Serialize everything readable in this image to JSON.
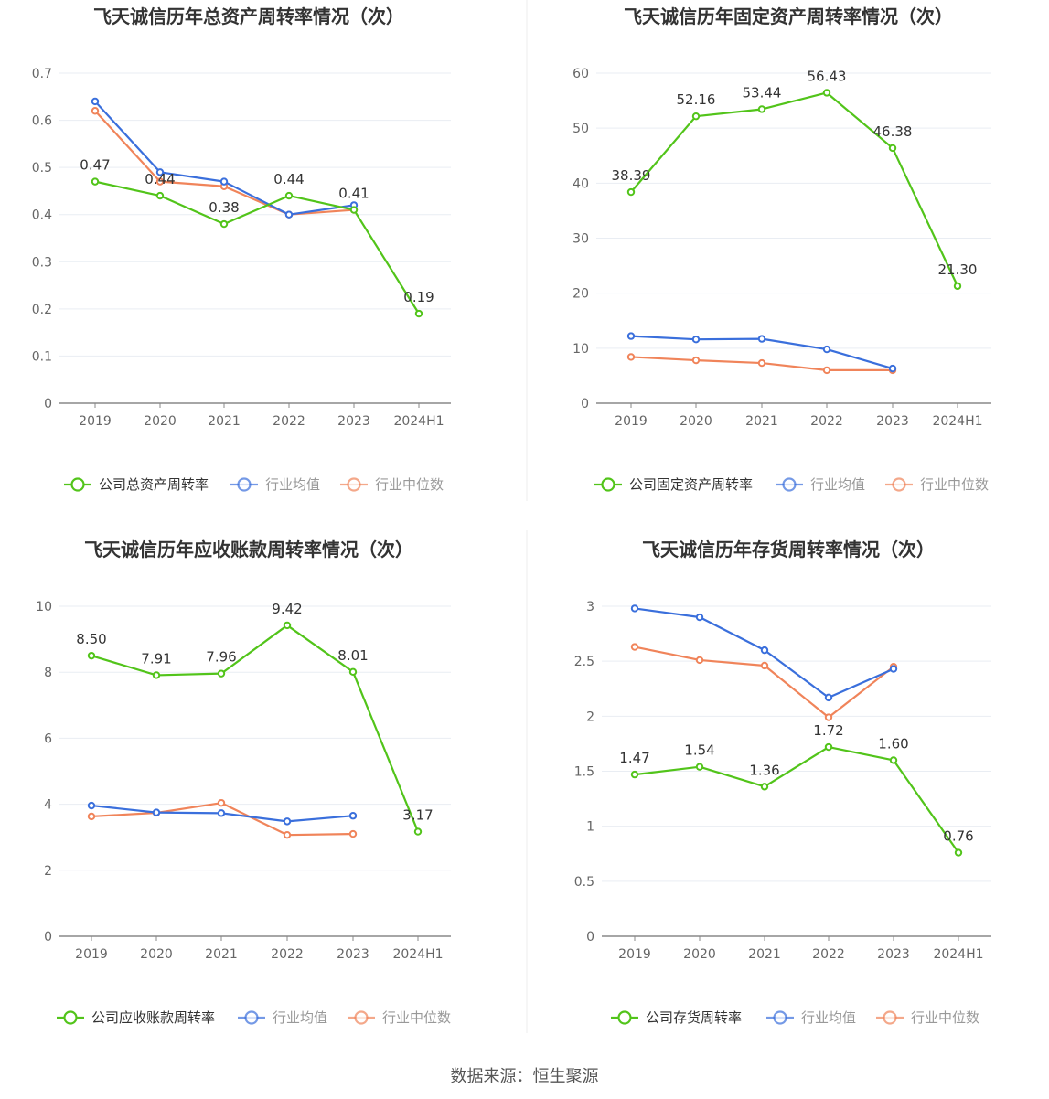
{
  "colors": {
    "company": "#52c41a",
    "avg": "#3a6fdc",
    "median": "#f0845a",
    "grid": "#e9edf3",
    "axis": "#666666",
    "title": "#333333"
  },
  "footer": "数据来源：恒生聚源",
  "chart_data": [
    {
      "type": "line",
      "title": "飞天诚信历年总资产周转率情况（次）",
      "categories": [
        "2019",
        "2020",
        "2021",
        "2022",
        "2023",
        "2024H1"
      ],
      "ylim": [
        0,
        0.7
      ],
      "yticks": [
        0,
        0.1,
        0.2,
        0.3,
        0.4,
        0.5,
        0.6,
        0.7
      ],
      "ytick_labels": [
        "0",
        "0.1",
        "0.2",
        "0.3",
        "0.4",
        "0.5",
        "0.6",
        "0.7"
      ],
      "grid": true,
      "legend_position": "bottom",
      "series": [
        {
          "name": "公司总资产周转率",
          "role": "company",
          "values": [
            0.47,
            0.44,
            0.38,
            0.44,
            0.41,
            0.19
          ],
          "labels": [
            "0.47",
            "0.44",
            "0.38",
            "0.44",
            "0.41",
            "0.19"
          ]
        },
        {
          "name": "行业均值",
          "role": "avg",
          "values": [
            0.64,
            0.49,
            0.47,
            0.4,
            0.42,
            null
          ]
        },
        {
          "name": "行业中位数",
          "role": "median",
          "values": [
            0.62,
            0.47,
            0.46,
            0.4,
            0.41,
            null
          ]
        }
      ]
    },
    {
      "type": "line",
      "title": "飞天诚信历年固定资产周转率情况（次）",
      "categories": [
        "2019",
        "2020",
        "2021",
        "2022",
        "2023",
        "2024H1"
      ],
      "ylim": [
        0,
        60
      ],
      "yticks": [
        0,
        10,
        20,
        30,
        40,
        50,
        60
      ],
      "ytick_labels": [
        "0",
        "10",
        "20",
        "30",
        "40",
        "50",
        "60"
      ],
      "grid": true,
      "legend_position": "bottom",
      "series": [
        {
          "name": "公司固定资产周转率",
          "role": "company",
          "values": [
            38.39,
            52.16,
            53.44,
            56.43,
            46.38,
            21.3
          ],
          "labels": [
            "38.39",
            "52.16",
            "53.44",
            "56.43",
            "46.38",
            "21.30"
          ]
        },
        {
          "name": "行业均值",
          "role": "avg",
          "values": [
            12.2,
            11.6,
            11.7,
            9.8,
            6.3,
            null
          ]
        },
        {
          "name": "行业中位数",
          "role": "median",
          "values": [
            8.4,
            7.8,
            7.3,
            6.0,
            6.0,
            null
          ]
        }
      ]
    },
    {
      "type": "line",
      "title": "飞天诚信历年应收账款周转率情况（次）",
      "categories": [
        "2019",
        "2020",
        "2021",
        "2022",
        "2023",
        "2024H1"
      ],
      "ylim": [
        0,
        10
      ],
      "yticks": [
        0,
        2,
        4,
        6,
        8,
        10
      ],
      "ytick_labels": [
        "0",
        "2",
        "4",
        "6",
        "8",
        "10"
      ],
      "grid": true,
      "legend_position": "bottom",
      "series": [
        {
          "name": "公司应收账款周转率",
          "role": "company",
          "values": [
            8.5,
            7.91,
            7.96,
            9.42,
            8.01,
            3.17
          ],
          "labels": [
            "8.50",
            "7.91",
            "7.96",
            "9.42",
            "8.01",
            "3.17"
          ]
        },
        {
          "name": "行业均值",
          "role": "avg",
          "values": [
            3.96,
            3.75,
            3.73,
            3.48,
            3.65,
            null
          ]
        },
        {
          "name": "行业中位数",
          "role": "median",
          "values": [
            3.63,
            3.74,
            4.04,
            3.07,
            3.1,
            null
          ]
        }
      ]
    },
    {
      "type": "line",
      "title": "飞天诚信历年存货周转率情况（次）",
      "categories": [
        "2019",
        "2020",
        "2021",
        "2022",
        "2023",
        "2024H1"
      ],
      "ylim": [
        0,
        3
      ],
      "yticks": [
        0,
        0.5,
        1,
        1.5,
        2,
        2.5,
        3
      ],
      "ytick_labels": [
        "0",
        "0.5",
        "1",
        "1.5",
        "2",
        "2.5",
        "3"
      ],
      "grid": true,
      "legend_position": "bottom",
      "series": [
        {
          "name": "公司存货周转率",
          "role": "company",
          "values": [
            1.47,
            1.54,
            1.36,
            1.72,
            1.6,
            0.76
          ],
          "labels": [
            "1.47",
            "1.54",
            "1.36",
            "1.72",
            "1.60",
            "0.76"
          ]
        },
        {
          "name": "行业均值",
          "role": "avg",
          "values": [
            2.98,
            2.9,
            2.6,
            2.17,
            2.43,
            null
          ]
        },
        {
          "name": "行业中位数",
          "role": "median",
          "values": [
            2.63,
            2.51,
            2.46,
            1.99,
            2.45,
            null
          ]
        }
      ]
    }
  ]
}
